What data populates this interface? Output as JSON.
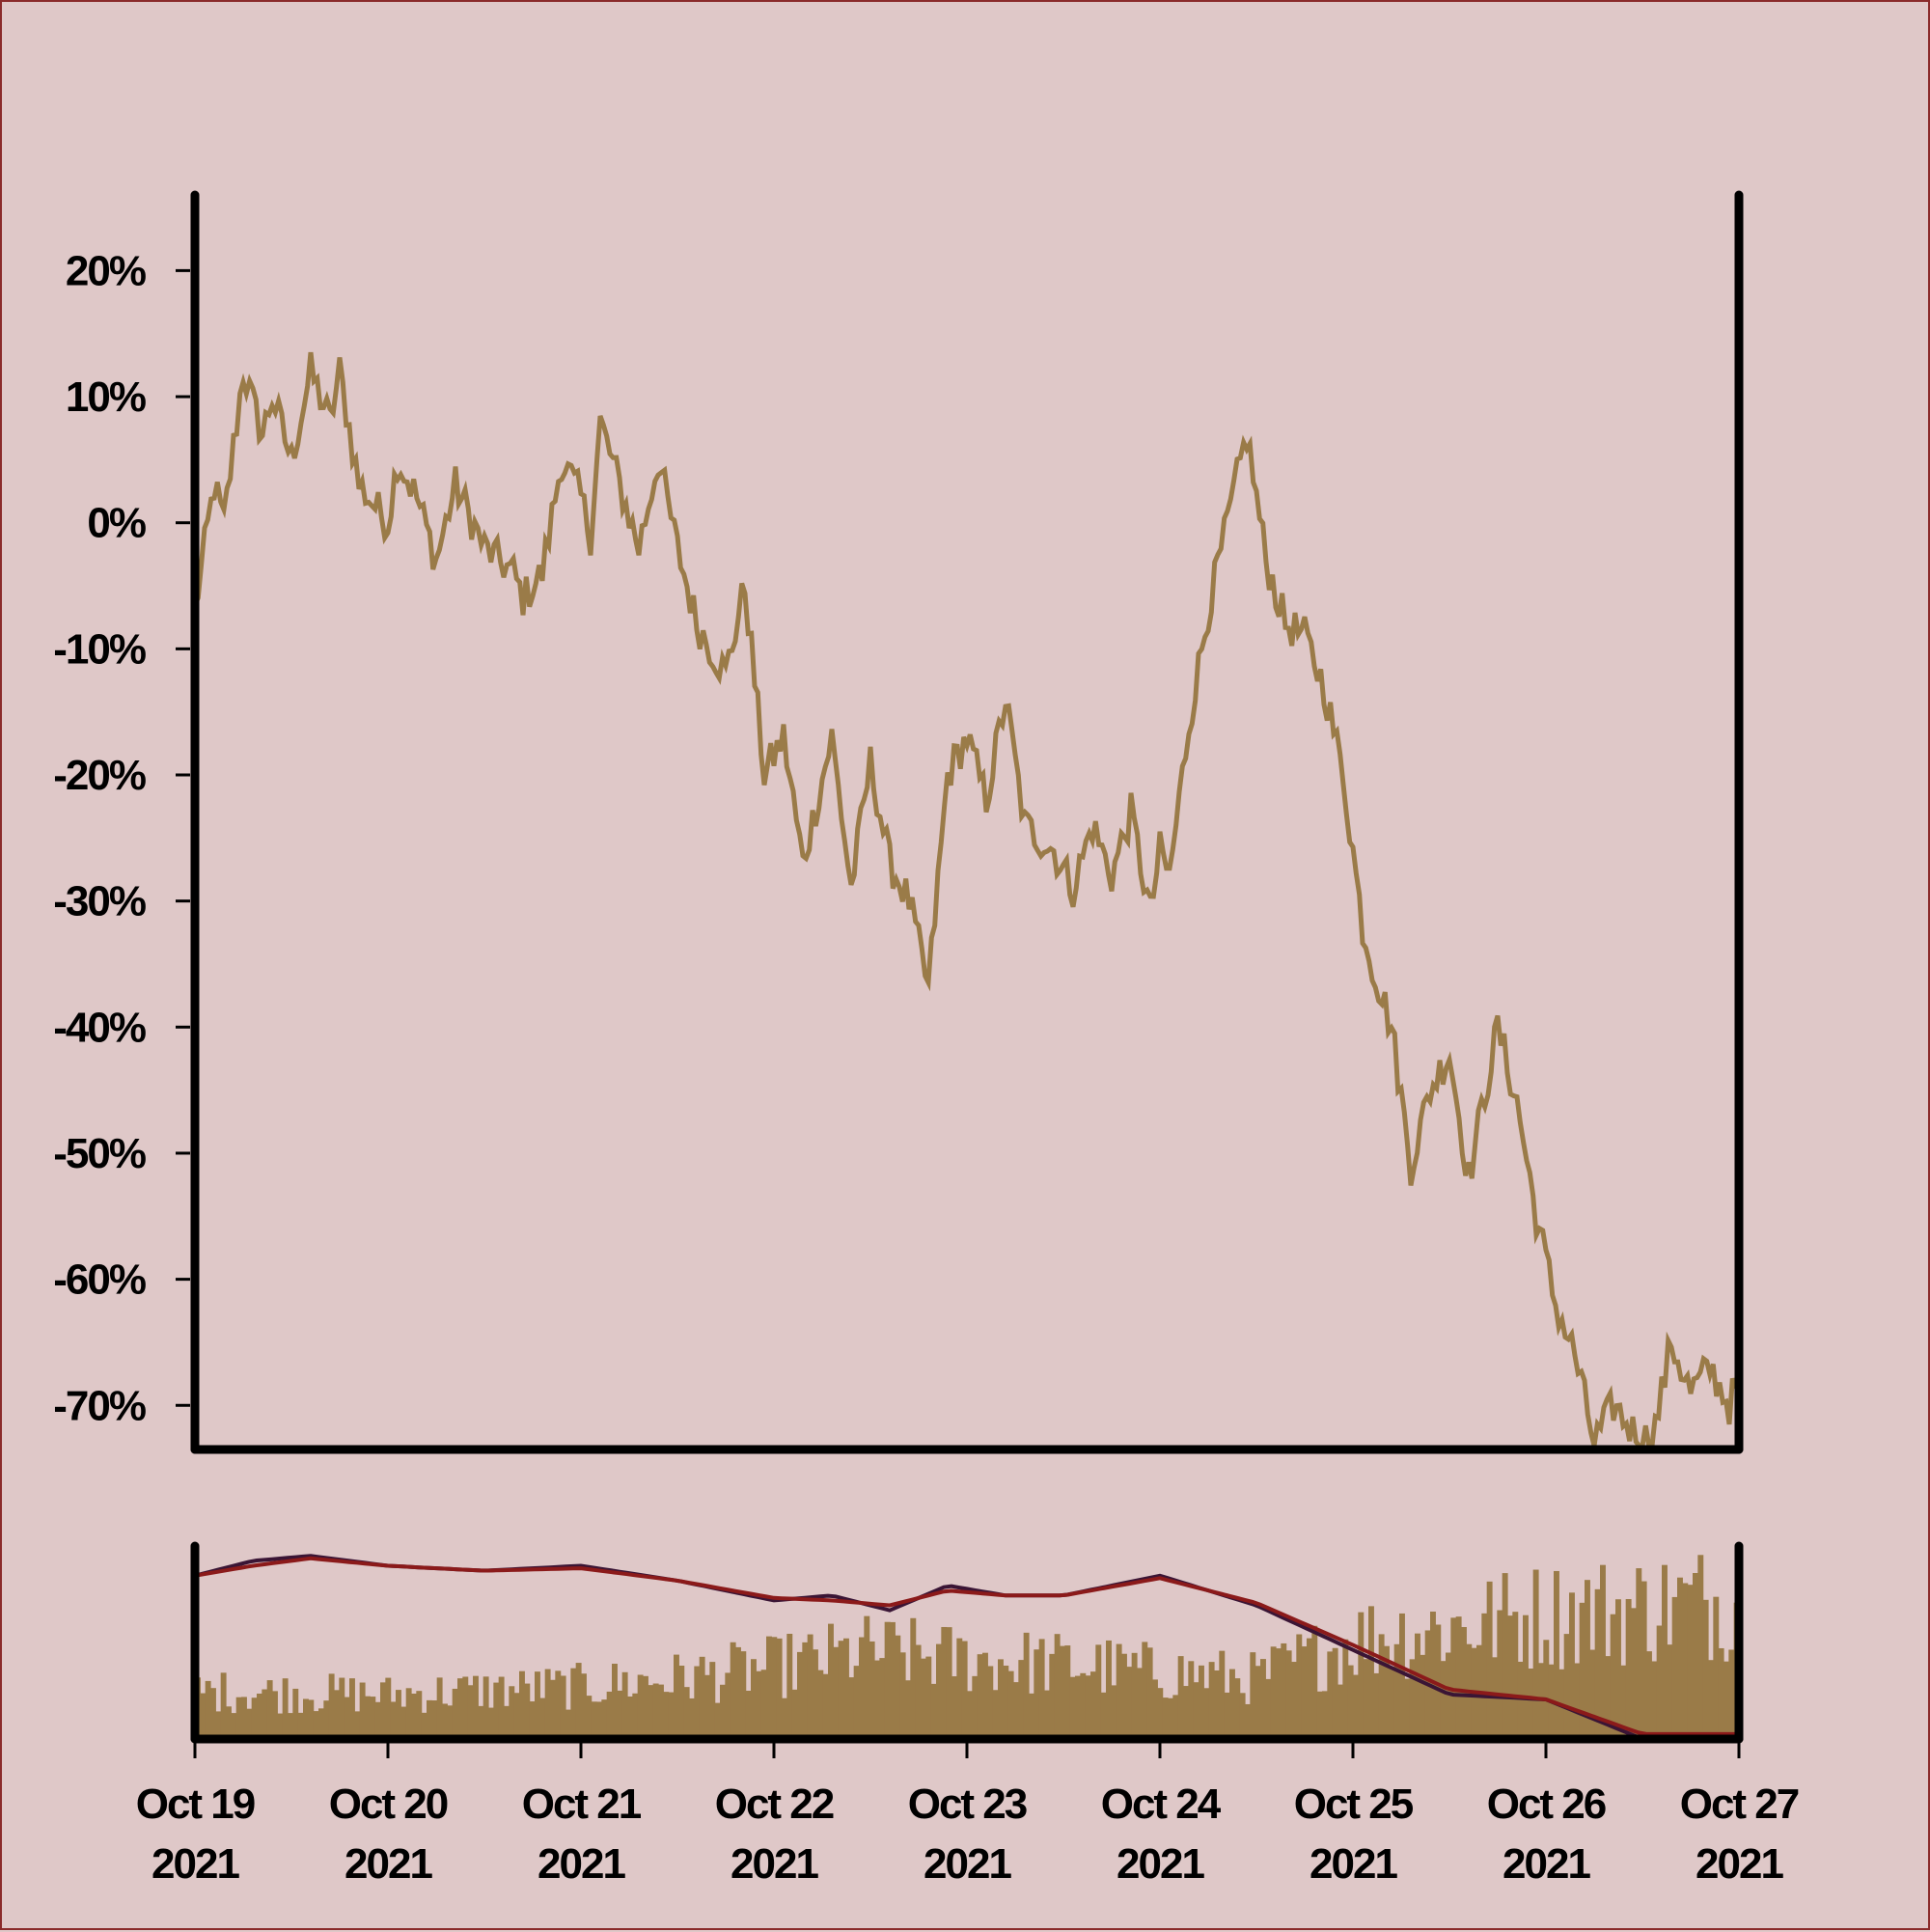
{
  "colors": {
    "background": "#dfc8c8",
    "price_line": "#9a7b48",
    "volume_bars": "#9a7b48",
    "ma_fast": "#3a1535",
    "ma_slow": "#8b1a1a",
    "axis": "#000000"
  },
  "chart_data": [
    {
      "type": "line",
      "title": "",
      "xlabel": "",
      "ylabel": "",
      "x_range": [
        "2021-10-19",
        "2021-10-27"
      ],
      "ylim": [
        -73.5,
        26
      ],
      "yticks": [
        20,
        10,
        0,
        -10,
        -20,
        -30,
        -40,
        -50,
        -60,
        -70
      ],
      "ytick_labels": [
        "20%",
        "10%",
        "0%",
        "-10%",
        "-20%",
        "-30%",
        "-40%",
        "-50%",
        "-60%",
        "-70%"
      ],
      "grid": false,
      "series": [
        {
          "x_days": [
            0.0,
            0.1,
            0.15,
            0.25,
            0.35,
            0.4,
            0.5,
            0.6,
            0.7,
            0.75,
            0.85,
            1.0,
            1.05,
            1.15,
            1.25,
            1.35,
            1.5,
            1.65,
            1.7,
            1.8,
            1.9,
            2.0,
            2.05,
            2.1,
            2.2,
            2.3,
            2.4,
            2.5,
            2.6,
            2.75,
            2.85,
            2.95,
            3.05,
            3.15,
            3.3,
            3.4,
            3.5,
            3.6,
            3.7,
            3.8,
            3.9,
            4.0,
            4.1,
            4.2,
            4.3,
            4.45,
            4.55,
            4.65,
            4.75,
            4.85,
            4.95,
            5.0,
            5.05,
            5.15,
            5.25,
            5.35,
            5.45,
            5.55,
            5.65,
            5.75,
            5.85,
            5.95,
            6.05,
            6.1,
            6.2,
            6.3,
            6.4,
            6.5,
            6.6,
            6.7,
            6.75,
            6.85,
            6.95,
            7.05,
            7.15,
            7.25,
            7.35,
            7.45,
            7.55,
            7.65,
            7.75,
            7.85,
            7.95,
            8.0
          ],
          "values": [
            -7,
            3,
            0,
            12,
            7,
            10,
            5,
            12,
            8,
            12,
            3,
            0,
            5,
            2,
            -3,
            3,
            -2,
            -4,
            -6,
            -4,
            5,
            2,
            -1,
            8,
            3,
            -2,
            5,
            -2,
            -8,
            -12,
            -5,
            -20,
            -17,
            -27,
            -17,
            -29,
            -19,
            -27,
            -30,
            -37,
            -20,
            -17,
            -22,
            -14,
            -24,
            -26,
            -29,
            -24,
            -28,
            -23,
            -31,
            -26,
            -28,
            -16,
            -7,
            0,
            7,
            -3,
            -8,
            -9,
            -13,
            -20,
            -32,
            -35,
            -40,
            -51,
            -45,
            -42,
            -52,
            -44,
            -40,
            -46,
            -55,
            -62,
            -66,
            -73,
            -70,
            -72,
            -73,
            -65,
            -69,
            -67,
            -70,
            -68
          ]
        }
      ]
    },
    {
      "type": "bar",
      "title": "",
      "xlabel": "",
      "ylabel": "",
      "x_range": [
        "2021-10-19",
        "2021-10-27"
      ],
      "xtick_labels": [
        [
          "Oct 19",
          "2021"
        ],
        [
          "Oct 20",
          "2021"
        ],
        [
          "Oct 21",
          "2021"
        ],
        [
          "Oct 22",
          "2021"
        ],
        [
          "Oct 23",
          "2021"
        ],
        [
          "Oct 24",
          "2021"
        ],
        [
          "Oct 25",
          "2021"
        ],
        [
          "Oct 26",
          "2021"
        ],
        [
          "Oct 27",
          "2021"
        ]
      ],
      "volume_envelope": {
        "x_days": [
          0,
          1,
          2,
          2.5,
          3,
          3.5,
          4,
          4.5,
          5,
          5.5,
          6,
          6.5,
          7,
          7.5,
          8
        ],
        "values": [
          0.3,
          0.28,
          0.33,
          0.38,
          0.45,
          0.55,
          0.5,
          0.47,
          0.42,
          0.38,
          0.62,
          0.7,
          0.78,
          0.82,
          0.88
        ]
      },
      "series": [
        {
          "name": "",
          "x_days": [
            0,
            0.3,
            0.6,
            1.0,
            1.5,
            2.0,
            2.5,
            3.0,
            3.3,
            3.6,
            3.9,
            4.2,
            4.5,
            5.0,
            5.5,
            6.0,
            6.5,
            7.0,
            7.5,
            8.0
          ],
          "values": [
            10,
            13,
            14,
            12,
            11,
            12,
            9,
            5,
            6,
            3,
            8,
            6,
            6,
            10,
            4,
            -5,
            -14,
            -15,
            -23,
            -22
          ]
        },
        {
          "name": "",
          "x_days": [
            0,
            0.3,
            0.6,
            1.0,
            1.5,
            2.0,
            2.5,
            3.0,
            3.3,
            3.6,
            3.9,
            4.2,
            4.5,
            5.0,
            5.5,
            6.0,
            6.5,
            7.0,
            7.5,
            8.0
          ],
          "values": [
            10,
            12,
            13.5,
            12,
            11,
            11.5,
            9,
            5.5,
            5,
            4,
            7,
            6,
            6,
            9.5,
            4.5,
            -4,
            -13,
            -15,
            -22,
            -22
          ]
        }
      ]
    }
  ]
}
